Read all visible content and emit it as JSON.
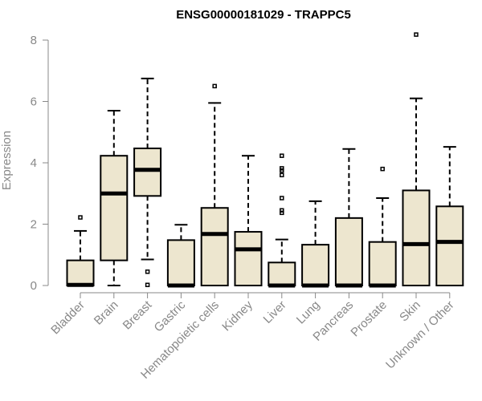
{
  "chart_data": {
    "type": "boxplot",
    "title": "ENSG00000181029 - TRAPPC5",
    "ylabel": "Expression",
    "xlabel": "",
    "ylim": [
      0,
      8
    ],
    "yticks": [
      0,
      2,
      4,
      6,
      8
    ],
    "grid": false,
    "box_fill": "#ede6cf",
    "categories": [
      "Bladder",
      "Brain",
      "Breast",
      "Gastric",
      "Hematopoietic cells",
      "Kidney",
      "Liver",
      "Lung",
      "Pancreas",
      "Prostate",
      "Skin",
      "Unknown / Other"
    ],
    "boxes": [
      {
        "q1": 0,
        "median": 0.02,
        "q3": 0.82,
        "whisker_low": 0,
        "whisker_high": 1.78,
        "outliers": [
          2.22
        ]
      },
      {
        "q1": 0.82,
        "median": 3.0,
        "q3": 4.23,
        "whisker_low": 0,
        "whisker_high": 5.7,
        "outliers": []
      },
      {
        "q1": 2.92,
        "median": 3.77,
        "q3": 4.47,
        "whisker_low": 0.85,
        "whisker_high": 6.75,
        "outliers": [
          0.45,
          0.02
        ]
      },
      {
        "q1": 0,
        "median": 0,
        "q3": 1.48,
        "whisker_low": 0,
        "whisker_high": 1.98,
        "outliers": []
      },
      {
        "q1": 0,
        "median": 1.68,
        "q3": 2.53,
        "whisker_low": 0,
        "whisker_high": 5.95,
        "outliers": [
          6.5
        ]
      },
      {
        "q1": 0,
        "median": 1.18,
        "q3": 1.75,
        "whisker_low": 0,
        "whisker_high": 4.23,
        "outliers": []
      },
      {
        "q1": 0,
        "median": 0,
        "q3": 0.75,
        "whisker_low": 0,
        "whisker_high": 1.5,
        "outliers": [
          2.37,
          2.45,
          2.85,
          3.6,
          3.75,
          3.82,
          4.23
        ]
      },
      {
        "q1": 0,
        "median": 0,
        "q3": 1.33,
        "whisker_low": 0,
        "whisker_high": 2.75,
        "outliers": []
      },
      {
        "q1": 0,
        "median": 0,
        "q3": 2.2,
        "whisker_low": 0,
        "whisker_high": 4.45,
        "outliers": []
      },
      {
        "q1": 0,
        "median": 0,
        "q3": 1.42,
        "whisker_low": 0,
        "whisker_high": 2.85,
        "outliers": [
          3.8
        ]
      },
      {
        "q1": 0,
        "median": 1.35,
        "q3": 3.1,
        "whisker_low": 0,
        "whisker_high": 6.1,
        "outliers": [
          8.18
        ]
      },
      {
        "q1": 0,
        "median": 1.42,
        "q3": 2.58,
        "whisker_low": 0,
        "whisker_high": 4.52,
        "outliers": []
      }
    ]
  }
}
